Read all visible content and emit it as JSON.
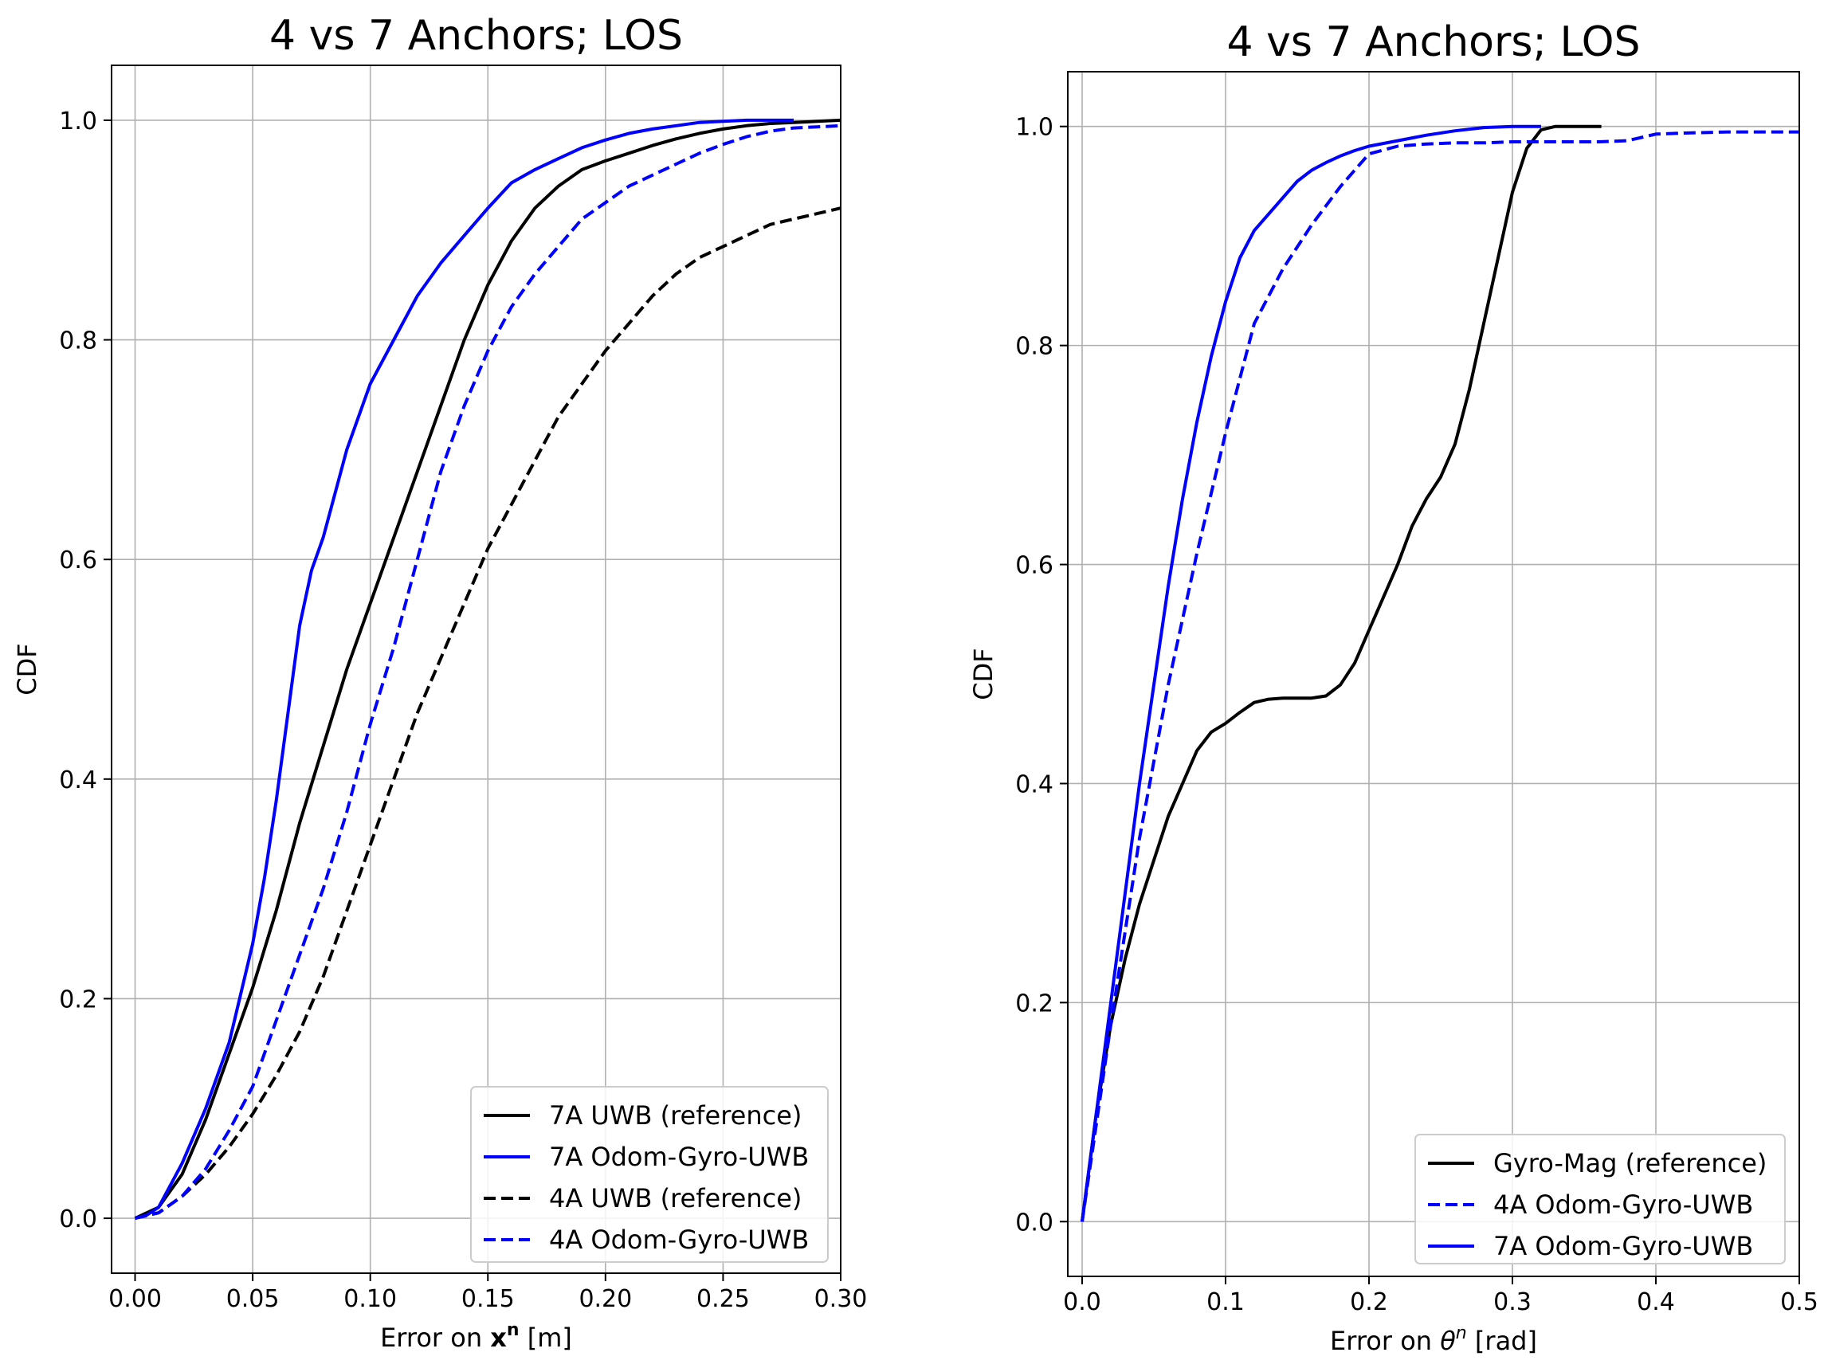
{
  "chart_data": [
    {
      "type": "line",
      "title": "4 vs 7 Anchors; LOS",
      "xlabel_prefix": "Error on ",
      "xlabel_symbol": "x",
      "xlabel_sup": "n",
      "xlabel_suffix": " [m]",
      "ylabel": "CDF",
      "xlim": [
        -0.01,
        0.3
      ],
      "ylim": [
        -0.05,
        1.05
      ],
      "xticks": [
        0.0,
        0.05,
        0.1,
        0.15,
        0.2,
        0.25,
        0.3
      ],
      "xtick_labels": [
        "0.00",
        "0.05",
        "0.10",
        "0.15",
        "0.20",
        "0.25",
        "0.30"
      ],
      "yticks": [
        0.0,
        0.2,
        0.4,
        0.6,
        0.8,
        1.0
      ],
      "ytick_labels": [
        "0.0",
        "0.2",
        "0.4",
        "0.6",
        "0.8",
        "1.0"
      ],
      "grid": true,
      "legend_position": "lower-right",
      "series": [
        {
          "name": "7A UWB (reference)",
          "color": "#000000",
          "dash": "solid",
          "x": [
            0.0,
            0.01,
            0.02,
            0.03,
            0.04,
            0.05,
            0.06,
            0.07,
            0.08,
            0.09,
            0.1,
            0.11,
            0.12,
            0.13,
            0.14,
            0.15,
            0.16,
            0.17,
            0.18,
            0.19,
            0.2,
            0.21,
            0.22,
            0.23,
            0.24,
            0.25,
            0.26,
            0.27,
            0.28,
            0.29,
            0.3
          ],
          "y": [
            0.0,
            0.01,
            0.04,
            0.09,
            0.15,
            0.21,
            0.28,
            0.36,
            0.43,
            0.5,
            0.56,
            0.62,
            0.68,
            0.74,
            0.8,
            0.85,
            0.89,
            0.92,
            0.94,
            0.955,
            0.963,
            0.97,
            0.977,
            0.983,
            0.988,
            0.992,
            0.995,
            0.997,
            0.998,
            0.999,
            1.0
          ]
        },
        {
          "name": "7A Odom-Gyro-UWB",
          "color": "#0000ff",
          "dash": "solid",
          "x": [
            0.0,
            0.005,
            0.01,
            0.015,
            0.02,
            0.03,
            0.04,
            0.05,
            0.055,
            0.06,
            0.065,
            0.07,
            0.075,
            0.08,
            0.09,
            0.1,
            0.11,
            0.12,
            0.13,
            0.14,
            0.15,
            0.16,
            0.17,
            0.18,
            0.19,
            0.2,
            0.21,
            0.22,
            0.23,
            0.24,
            0.25,
            0.26,
            0.27,
            0.28
          ],
          "y": [
            0.0,
            0.003,
            0.01,
            0.03,
            0.05,
            0.1,
            0.16,
            0.25,
            0.31,
            0.38,
            0.46,
            0.54,
            0.59,
            0.62,
            0.7,
            0.76,
            0.8,
            0.84,
            0.87,
            0.895,
            0.92,
            0.943,
            0.955,
            0.965,
            0.975,
            0.982,
            0.988,
            0.992,
            0.995,
            0.998,
            0.999,
            1.0,
            1.0,
            1.0
          ]
        },
        {
          "name": "4A UWB (reference)",
          "color": "#000000",
          "dash": "dashed",
          "x": [
            0.0,
            0.01,
            0.02,
            0.03,
            0.04,
            0.05,
            0.06,
            0.07,
            0.08,
            0.09,
            0.1,
            0.11,
            0.12,
            0.13,
            0.14,
            0.15,
            0.16,
            0.17,
            0.18,
            0.19,
            0.2,
            0.21,
            0.22,
            0.23,
            0.24,
            0.25,
            0.26,
            0.27,
            0.28,
            0.29,
            0.3
          ],
          "y": [
            0.0,
            0.005,
            0.02,
            0.04,
            0.065,
            0.095,
            0.13,
            0.17,
            0.22,
            0.28,
            0.34,
            0.4,
            0.46,
            0.51,
            0.56,
            0.61,
            0.65,
            0.69,
            0.73,
            0.76,
            0.79,
            0.815,
            0.84,
            0.86,
            0.875,
            0.885,
            0.895,
            0.905,
            0.91,
            0.915,
            0.92
          ]
        },
        {
          "name": "4A Odom-Gyro-UWB",
          "color": "#0000ff",
          "dash": "dashed",
          "x": [
            0.0,
            0.01,
            0.02,
            0.03,
            0.04,
            0.05,
            0.06,
            0.07,
            0.08,
            0.09,
            0.1,
            0.11,
            0.12,
            0.13,
            0.14,
            0.15,
            0.16,
            0.17,
            0.18,
            0.19,
            0.2,
            0.21,
            0.22,
            0.23,
            0.24,
            0.25,
            0.26,
            0.27,
            0.28,
            0.29,
            0.3
          ],
          "y": [
            0.0,
            0.005,
            0.02,
            0.045,
            0.08,
            0.12,
            0.18,
            0.24,
            0.3,
            0.37,
            0.45,
            0.52,
            0.6,
            0.68,
            0.74,
            0.79,
            0.83,
            0.86,
            0.885,
            0.91,
            0.925,
            0.94,
            0.95,
            0.96,
            0.97,
            0.978,
            0.985,
            0.99,
            0.993,
            0.994,
            0.995
          ]
        }
      ],
      "legend_entries": [
        "7A UWB (reference)",
        "7A Odom-Gyro-UWB",
        "4A UWB (reference)",
        "4A Odom-Gyro-UWB"
      ]
    },
    {
      "type": "line",
      "title": "4 vs 7 Anchors; LOS",
      "xlabel_prefix": "Error on ",
      "xlabel_symbol": "θ",
      "xlabel_sup": "n",
      "xlabel_suffix": " [rad]",
      "ylabel": "CDF",
      "xlim": [
        -0.01,
        0.5
      ],
      "ylim": [
        -0.05,
        1.05
      ],
      "xticks": [
        0.0,
        0.1,
        0.2,
        0.3,
        0.4,
        0.5
      ],
      "xtick_labels": [
        "0.0",
        "0.1",
        "0.2",
        "0.3",
        "0.4",
        "0.5"
      ],
      "yticks": [
        0.0,
        0.2,
        0.4,
        0.6,
        0.8,
        1.0
      ],
      "ytick_labels": [
        "0.0",
        "0.2",
        "0.4",
        "0.6",
        "0.8",
        "1.0"
      ],
      "grid": true,
      "legend_position": "lower-right",
      "series": [
        {
          "name": "Gyro-Mag (reference)",
          "color": "#000000",
          "dash": "solid",
          "x": [
            0.0,
            0.01,
            0.02,
            0.03,
            0.04,
            0.05,
            0.06,
            0.07,
            0.08,
            0.09,
            0.1,
            0.11,
            0.12,
            0.13,
            0.14,
            0.15,
            0.16,
            0.17,
            0.18,
            0.19,
            0.2,
            0.21,
            0.22,
            0.23,
            0.24,
            0.25,
            0.26,
            0.27,
            0.28,
            0.29,
            0.3,
            0.31,
            0.32,
            0.33,
            0.34,
            0.35,
            0.362
          ],
          "y": [
            0.0,
            0.1,
            0.18,
            0.24,
            0.29,
            0.33,
            0.37,
            0.4,
            0.43,
            0.447,
            0.455,
            0.465,
            0.474,
            0.477,
            0.478,
            0.478,
            0.478,
            0.48,
            0.49,
            0.51,
            0.54,
            0.57,
            0.6,
            0.635,
            0.66,
            0.68,
            0.71,
            0.76,
            0.82,
            0.88,
            0.94,
            0.98,
            0.997,
            1.0,
            1.0,
            1.0,
            1.0
          ]
        },
        {
          "name": "4A Odom-Gyro-UWB",
          "color": "#0000ff",
          "dash": "dashed",
          "x": [
            0.0,
            0.02,
            0.04,
            0.06,
            0.08,
            0.1,
            0.12,
            0.14,
            0.16,
            0.18,
            0.2,
            0.22,
            0.24,
            0.26,
            0.28,
            0.3,
            0.32,
            0.34,
            0.36,
            0.38,
            0.39,
            0.4,
            0.42,
            0.45,
            0.48,
            0.5
          ],
          "y": [
            0.0,
            0.18,
            0.35,
            0.49,
            0.61,
            0.72,
            0.82,
            0.87,
            0.91,
            0.945,
            0.975,
            0.982,
            0.984,
            0.985,
            0.985,
            0.986,
            0.986,
            0.986,
            0.986,
            0.987,
            0.99,
            0.993,
            0.994,
            0.995,
            0.995,
            0.995
          ]
        },
        {
          "name": "7A Odom-Gyro-UWB",
          "color": "#0000ff",
          "dash": "solid",
          "x": [
            0.0,
            0.01,
            0.02,
            0.03,
            0.04,
            0.05,
            0.06,
            0.07,
            0.08,
            0.09,
            0.1,
            0.11,
            0.12,
            0.13,
            0.14,
            0.15,
            0.16,
            0.17,
            0.18,
            0.19,
            0.2,
            0.22,
            0.24,
            0.26,
            0.28,
            0.3,
            0.32
          ],
          "y": [
            0.0,
            0.1,
            0.2,
            0.3,
            0.4,
            0.49,
            0.58,
            0.66,
            0.73,
            0.79,
            0.84,
            0.88,
            0.905,
            0.92,
            0.935,
            0.95,
            0.96,
            0.967,
            0.973,
            0.978,
            0.982,
            0.987,
            0.992,
            0.996,
            0.999,
            1.0,
            1.0
          ]
        }
      ],
      "legend_entries": [
        "Gyro-Mag (reference)",
        "4A Odom-Gyro-UWB",
        "7A Odom-Gyro-UWB"
      ]
    }
  ]
}
